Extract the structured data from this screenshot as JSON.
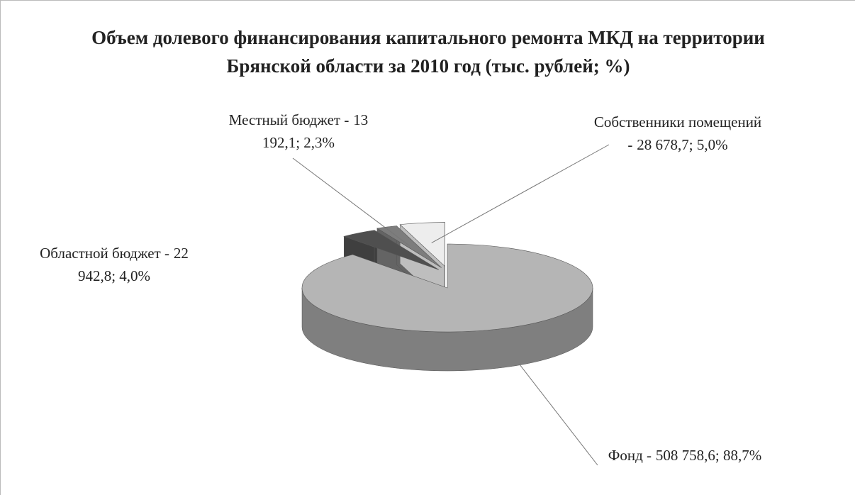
{
  "chart_data": {
    "type": "pie",
    "title": "Объем долевого финансирования капитального ремонта МКД на территории Брянской области за 2010 год (тыс. рублей; %)",
    "categories": [
      "Фонд -",
      "Областной бюджет -",
      "Местный бюджет -",
      "Собственники помещений -"
    ],
    "values": [
      508758.6,
      22942.8,
      13192.1,
      28678.7
    ],
    "value_labels": [
      "508 758,6; 88,7%",
      "22 942,8; 4,0%",
      "13 192,1; 2,3%",
      "28 678,7; 5,0%"
    ],
    "colors": [
      "#b5b5b5",
      "#4f4f4f",
      "#7d7d7d",
      "#ededed"
    ]
  }
}
